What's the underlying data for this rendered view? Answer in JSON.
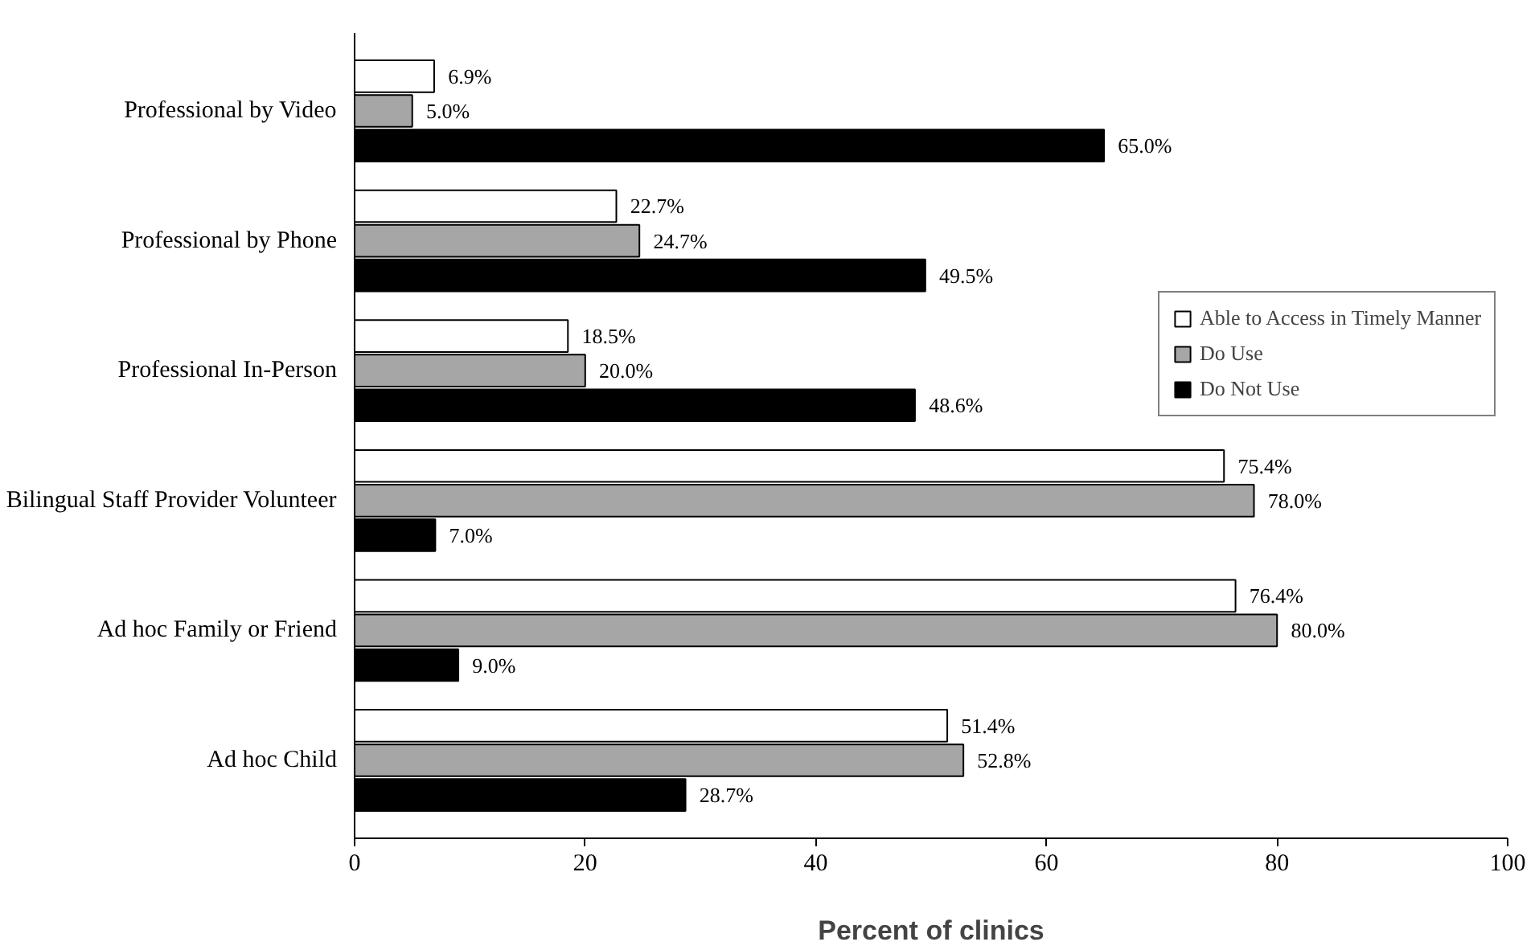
{
  "chart_data": {
    "type": "bar",
    "orientation": "horizontal",
    "xlabel": "Percent of clinics",
    "categories": [
      "Professional by Video",
      "Professional by Phone",
      "Professional In-Person",
      "Bilingual Staff Provider Volunteer",
      "Ad hoc Family or Friend",
      "Ad hoc Child"
    ],
    "series": [
      {
        "name": "Able to Access in Timely Manner",
        "color": "#ffffff",
        "values": [
          6.9,
          22.7,
          18.5,
          75.4,
          76.4,
          51.4
        ],
        "value_labels": [
          "6.9%",
          "22.7%",
          "18.5%",
          "75.4%",
          "76.4%",
          "51.4%"
        ]
      },
      {
        "name": "Do Use",
        "color": "#a6a6a6",
        "values": [
          5.0,
          24.7,
          20.0,
          78.0,
          80.0,
          52.8
        ],
        "value_labels": [
          "5.0%",
          "24.7%",
          "20.0%",
          "78.0%",
          "80.0%",
          "52.8%"
        ]
      },
      {
        "name": "Do Not Use",
        "color": "#000000",
        "values": [
          65.0,
          49.5,
          48.6,
          7.0,
          9.0,
          28.7
        ],
        "value_labels": [
          "65.0%",
          "49.5%",
          "48.6%",
          "7.0%",
          "9.0%",
          "28.7%"
        ]
      }
    ],
    "xlim": [
      0,
      100
    ],
    "xticks": [
      0,
      20,
      40,
      60,
      80,
      100
    ],
    "grid": false,
    "legend": "right"
  }
}
